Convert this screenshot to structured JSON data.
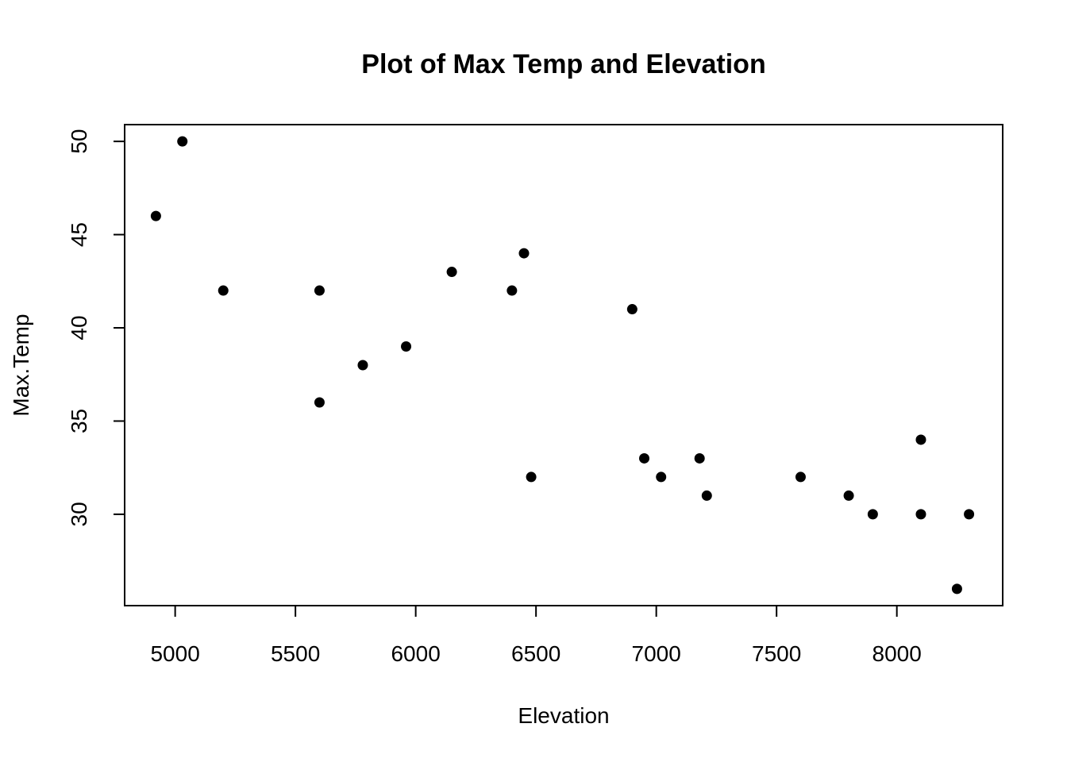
{
  "chart_data": {
    "type": "scatter",
    "title": "Plot of Max Temp and Elevation",
    "xlabel": "Elevation",
    "ylabel": "Max.Temp",
    "xlim": [
      4790,
      8440
    ],
    "ylim": [
      25.1,
      50.9
    ],
    "xticks": [
      5000,
      5500,
      6000,
      6500,
      7000,
      7500,
      8000
    ],
    "yticks": [
      30,
      35,
      40,
      45,
      50
    ],
    "grid": false,
    "marker_color": "#000000",
    "points": [
      {
        "x": 4920,
        "y": 46
      },
      {
        "x": 5030,
        "y": 50
      },
      {
        "x": 5200,
        "y": 42
      },
      {
        "x": 5600,
        "y": 42
      },
      {
        "x": 5600,
        "y": 36
      },
      {
        "x": 5780,
        "y": 38
      },
      {
        "x": 5960,
        "y": 39
      },
      {
        "x": 6150,
        "y": 43
      },
      {
        "x": 6400,
        "y": 42
      },
      {
        "x": 6450,
        "y": 44
      },
      {
        "x": 6480,
        "y": 32
      },
      {
        "x": 6900,
        "y": 41
      },
      {
        "x": 6950,
        "y": 33
      },
      {
        "x": 7020,
        "y": 32
      },
      {
        "x": 7180,
        "y": 33
      },
      {
        "x": 7210,
        "y": 31
      },
      {
        "x": 7600,
        "y": 32
      },
      {
        "x": 7800,
        "y": 31
      },
      {
        "x": 7900,
        "y": 30
      },
      {
        "x": 8100,
        "y": 34
      },
      {
        "x": 8100,
        "y": 30
      },
      {
        "x": 8250,
        "y": 26
      },
      {
        "x": 8300,
        "y": 30
      }
    ]
  }
}
